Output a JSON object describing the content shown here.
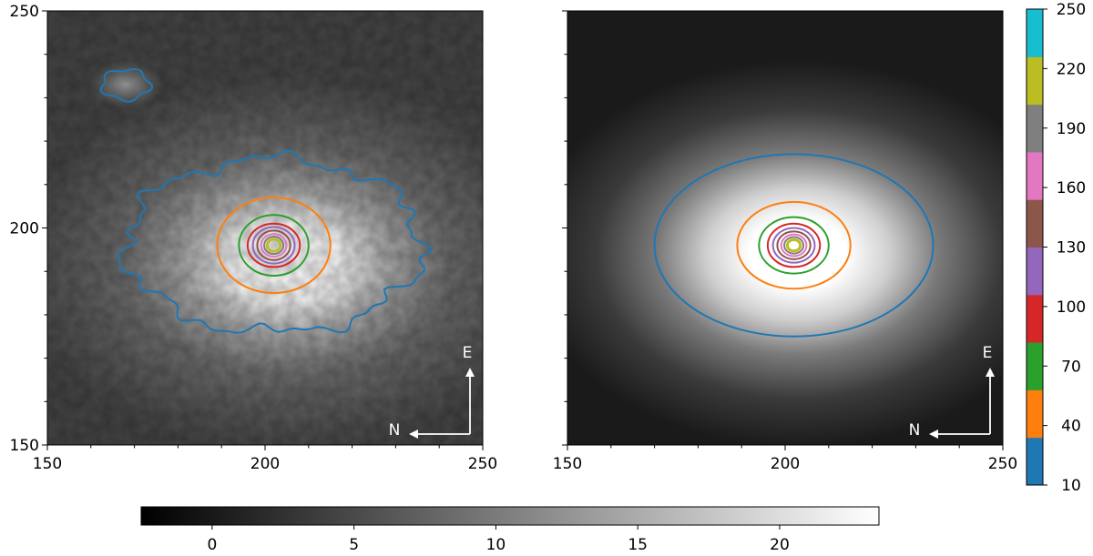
{
  "chart_data": [
    {
      "type": "heatmap",
      "panel": "observed",
      "xlim": [
        150,
        250
      ],
      "ylim": [
        150,
        250
      ],
      "x_ticks": [
        "150",
        "200",
        "250"
      ],
      "y_ticks": [
        "150",
        "200",
        "250"
      ],
      "center": [
        202,
        196
      ],
      "contour_levels": [
        10,
        40,
        70,
        100,
        130,
        160,
        190,
        220,
        250
      ],
      "contours": [
        {
          "level": 10,
          "rx": 34,
          "ry": 20
        },
        {
          "level": 40,
          "rx": 13,
          "ry": 11
        },
        {
          "level": 70,
          "rx": 8,
          "ry": 7
        },
        {
          "level": 100,
          "rx": 6,
          "ry": 5
        },
        {
          "level": 130,
          "rx": 4.8,
          "ry": 4.2
        },
        {
          "level": 160,
          "rx": 3.8,
          "ry": 3.4
        },
        {
          "level": 190,
          "rx": 2.9,
          "ry": 2.6
        },
        {
          "level": 220,
          "rx": 2.2,
          "ry": 2.0
        },
        {
          "level": 250,
          "rx": 1.5,
          "ry": 1.4
        }
      ],
      "secondary_source": {
        "center": [
          168,
          233
        ],
        "level": 10,
        "rx": 5.5,
        "ry": 3.5
      },
      "compass": {
        "N": "N",
        "E": "E"
      }
    },
    {
      "type": "heatmap",
      "panel": "model",
      "xlim": [
        150,
        250
      ],
      "ylim": [
        150,
        250
      ],
      "x_ticks": [
        "150",
        "200",
        "250"
      ],
      "y_ticks": [],
      "center": [
        202,
        196
      ],
      "contour_levels": [
        10,
        40,
        70,
        100,
        130,
        160,
        190,
        220,
        250
      ],
      "contours": [
        {
          "level": 10,
          "rx": 32,
          "ry": 21
        },
        {
          "level": 40,
          "rx": 13,
          "ry": 10
        },
        {
          "level": 70,
          "rx": 8,
          "ry": 6.5
        },
        {
          "level": 100,
          "rx": 6,
          "ry": 5
        },
        {
          "level": 130,
          "rx": 4.8,
          "ry": 4
        },
        {
          "level": 160,
          "rx": 3.8,
          "ry": 3.2
        },
        {
          "level": 190,
          "rx": 2.9,
          "ry": 2.5
        },
        {
          "level": 220,
          "rx": 2.2,
          "ry": 1.9
        },
        {
          "level": 250,
          "rx": 1.5,
          "ry": 1.3
        }
      ],
      "compass": {
        "N": "N",
        "E": "E"
      }
    }
  ],
  "contour_colorbar": {
    "ticks": [
      "10",
      "40",
      "70",
      "100",
      "130",
      "160",
      "190",
      "220",
      "250"
    ],
    "colors": [
      "#1f77b4",
      "#ff7f0e",
      "#2ca02c",
      "#d62728",
      "#9467bd",
      "#8c564b",
      "#e377c2",
      "#7f7f7f",
      "#bcbd22",
      "#17becf"
    ]
  },
  "intensity_colorbar": {
    "range": [
      -2.5,
      23.5
    ],
    "ticks": [
      {
        "label": "0",
        "value": 0
      },
      {
        "label": "5",
        "value": 5
      },
      {
        "label": "10",
        "value": 10
      },
      {
        "label": "15",
        "value": 15
      },
      {
        "label": "20",
        "value": 20
      }
    ],
    "colormap": "gray"
  }
}
